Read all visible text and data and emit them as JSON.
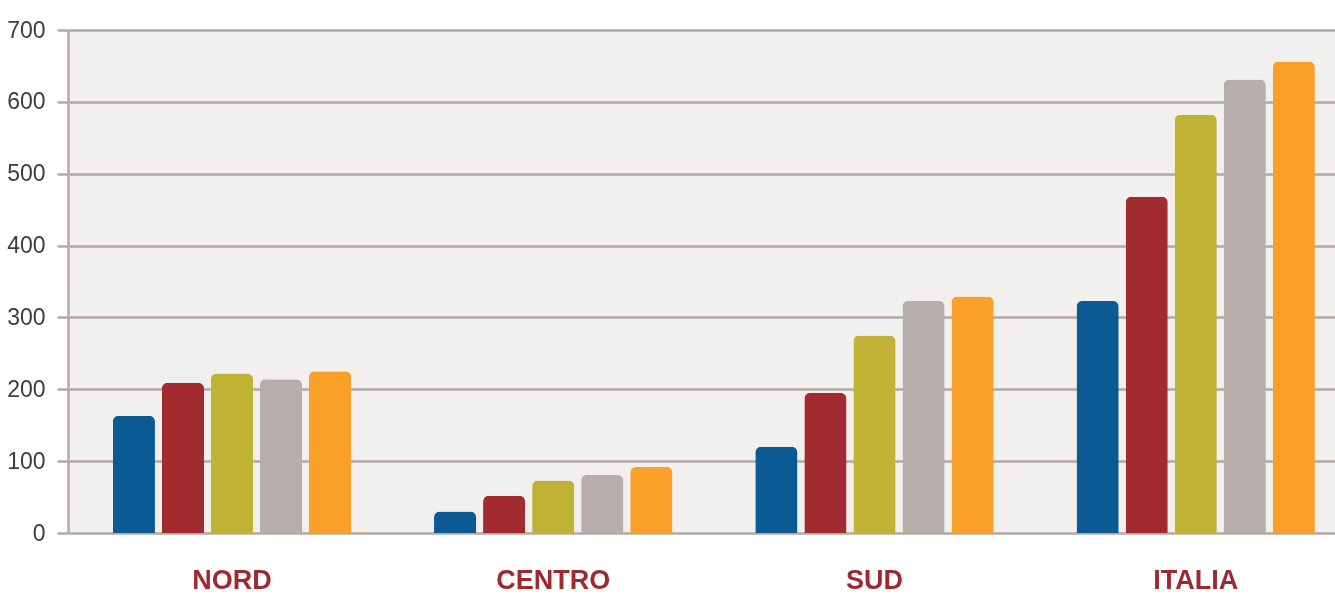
{
  "chart_data": {
    "type": "bar",
    "categories": [
      "NORD",
      "CENTRO",
      "SUD",
      "ITALIA"
    ],
    "series": [
      {
        "color": "#0b5a93",
        "values": [
          163,
          30,
          120,
          323
        ]
      },
      {
        "color": "#a12b2e",
        "values": [
          209,
          52,
          195,
          468
        ]
      },
      {
        "color": "#bfb234",
        "values": [
          222,
          73,
          275,
          582
        ]
      },
      {
        "color": "#b7aeab",
        "values": [
          214,
          81,
          323,
          631
        ]
      },
      {
        "color": "#f8a028",
        "values": [
          225,
          92,
          329,
          656
        ]
      }
    ],
    "ylim": [
      0,
      700
    ],
    "yticks": [
      0,
      100,
      200,
      300,
      400,
      500,
      600,
      700
    ],
    "grid": "y"
  }
}
